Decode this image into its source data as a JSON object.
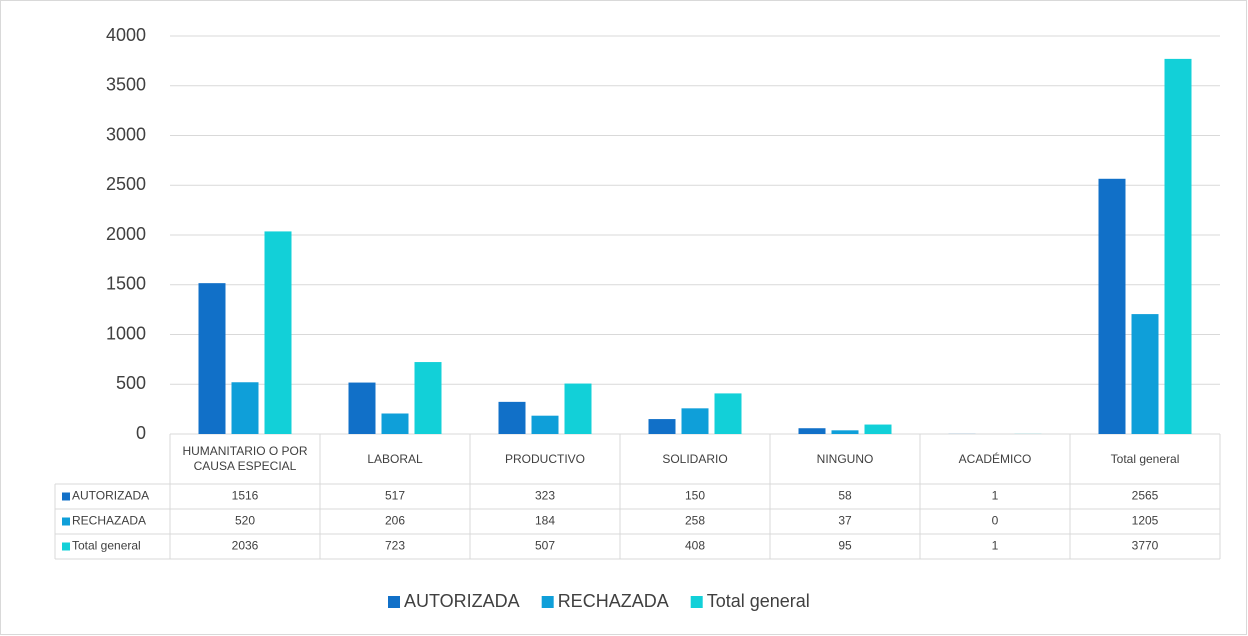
{
  "chart_data": {
    "type": "bar",
    "categories": [
      "HUMANITARIO O POR CAUSA ESPECIAL",
      "LABORAL",
      "PRODUCTIVO",
      "SOLIDARIO",
      "NINGUNO",
      "ACADÉMICO",
      "Total general"
    ],
    "series": [
      {
        "name": "AUTORIZADA",
        "color": "#1170c8",
        "values": [
          1516,
          517,
          323,
          150,
          58,
          1,
          2565
        ]
      },
      {
        "name": "RECHAZADA",
        "color": "#0f9fd9",
        "values": [
          520,
          206,
          184,
          258,
          37,
          0,
          1205
        ]
      },
      {
        "name": "Total general",
        "color": "#12d0d8",
        "values": [
          2036,
          723,
          507,
          408,
          95,
          1,
          3770
        ]
      }
    ],
    "ylim": [
      0,
      4000
    ],
    "yticks": [
      0,
      500,
      1000,
      1500,
      2000,
      2500,
      3000,
      3500,
      4000
    ],
    "grid": true
  }
}
